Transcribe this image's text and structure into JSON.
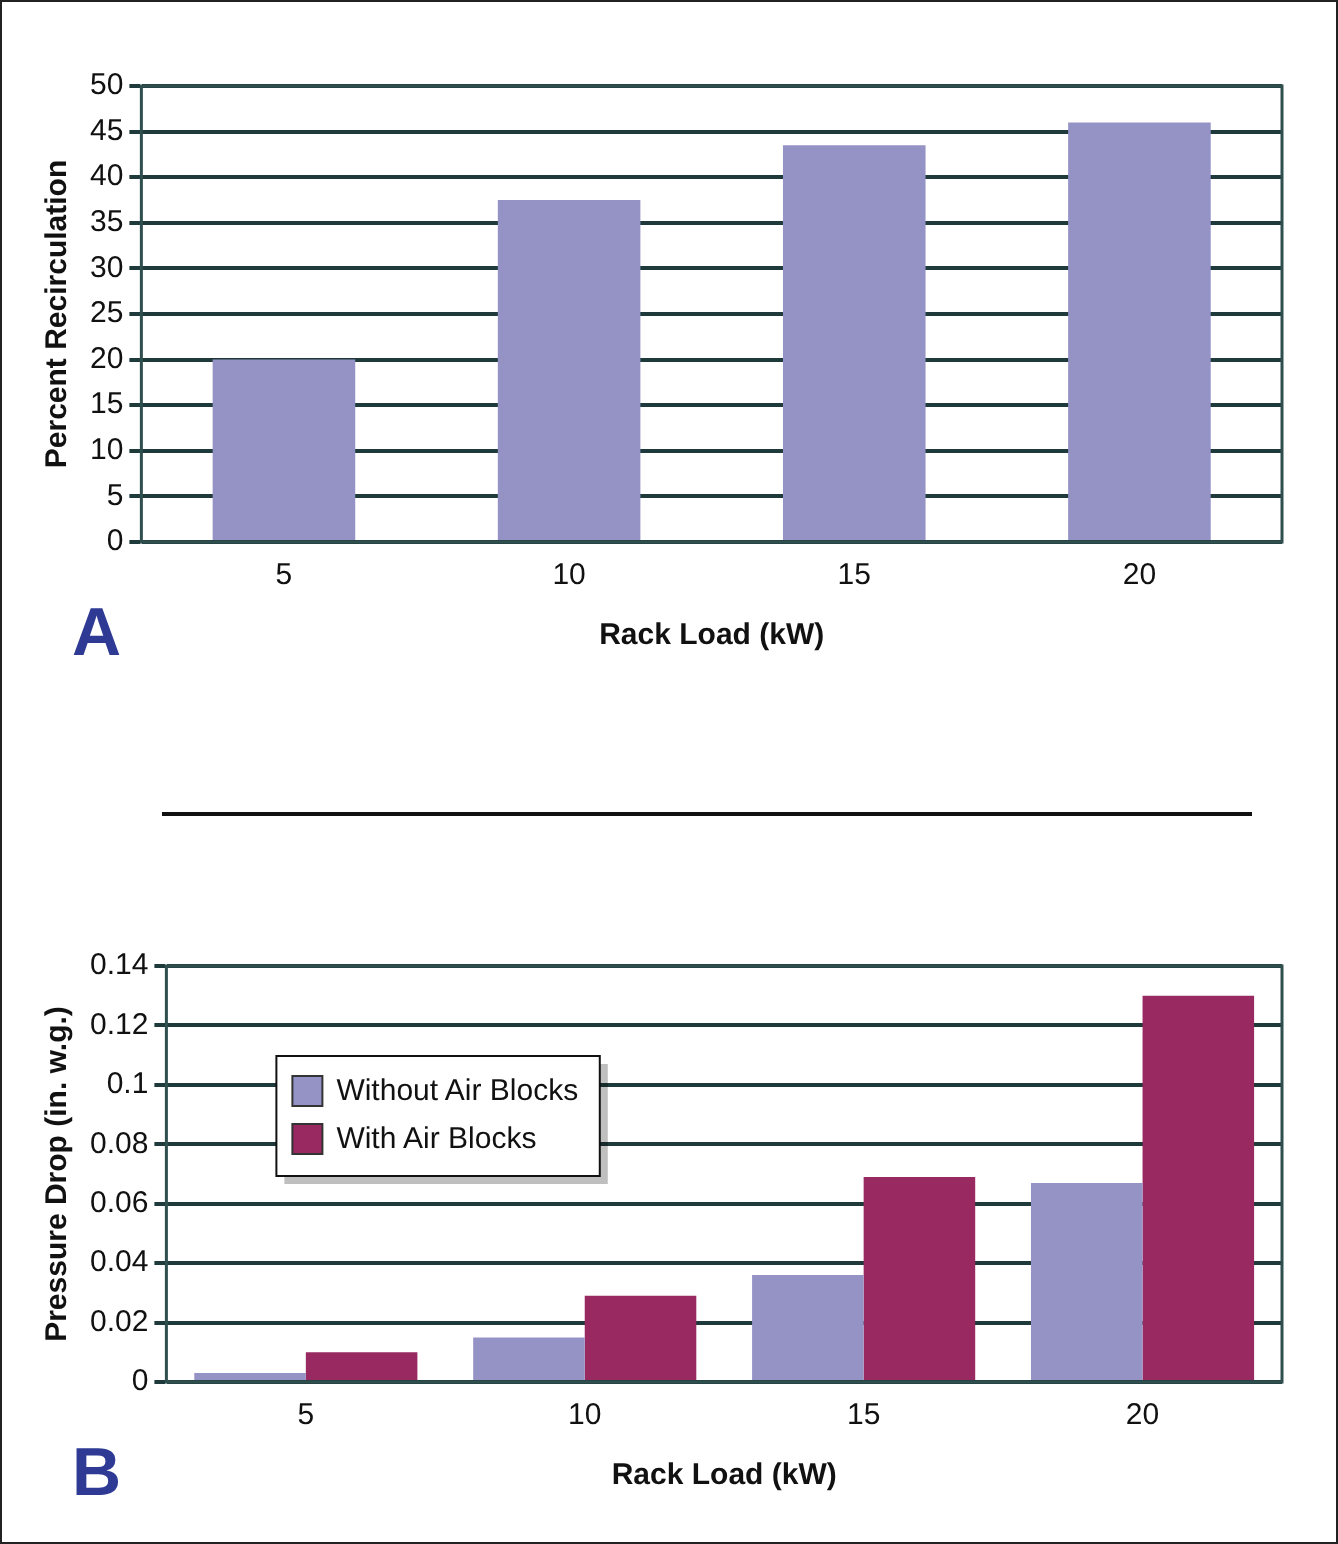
{
  "chart_data": [
    {
      "type": "bar",
      "categories": [
        "5",
        "10",
        "15",
        "20"
      ],
      "values": [
        20,
        37.5,
        43.5,
        46
      ],
      "color": "#9592c6",
      "xlabel": "Rack Load (kW)",
      "ylabel": "Percent Recirculation",
      "ylim": [
        0,
        50
      ],
      "yticks": [
        0,
        5,
        10,
        15,
        20,
        25,
        30,
        35,
        40,
        45,
        50
      ],
      "grid": "y",
      "annotations": [
        "A"
      ]
    },
    {
      "type": "bar",
      "categories": [
        "5",
        "10",
        "15",
        "20"
      ],
      "series": [
        {
          "name": "Without Air Blocks",
          "color": "#9592c6",
          "values": [
            0.003,
            0.015,
            0.036,
            0.067
          ]
        },
        {
          "name": "With Air Blocks",
          "color": "#982a61",
          "values": [
            0.01,
            0.029,
            0.069,
            0.13
          ]
        }
      ],
      "xlabel": "Rack Load (kW)",
      "ylabel": "Pressure Drop (in. w.g.)",
      "ylim": [
        0,
        0.14
      ],
      "yticks": [
        0,
        0.02,
        0.04,
        0.06,
        0.08,
        0.1,
        0.12,
        0.14
      ],
      "grid": "y",
      "legend": "top left",
      "annotations": [
        "B"
      ]
    }
  ]
}
